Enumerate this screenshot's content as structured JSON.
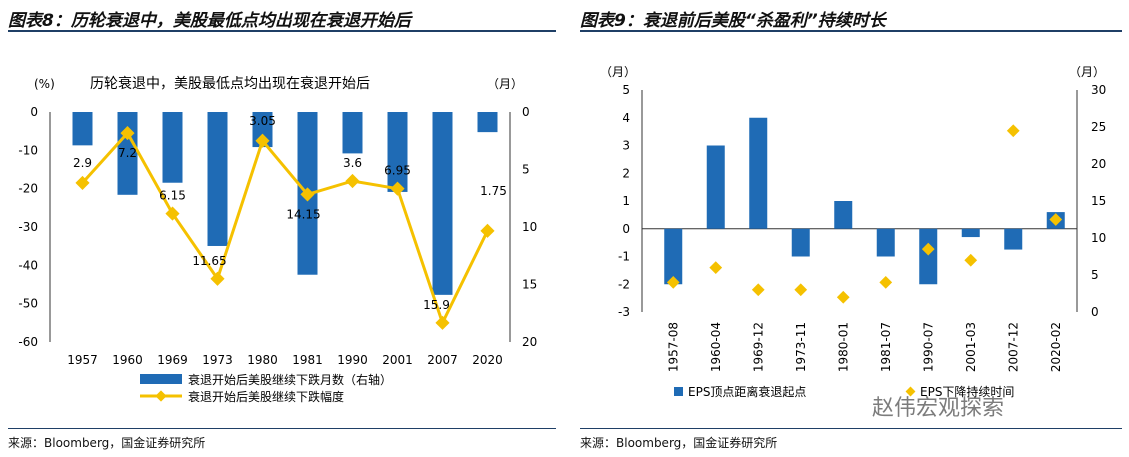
{
  "left": {
    "panel_title": "图表8：历轮衰退中，美股最低点均出现在衰退开始后",
    "source": "来源：Bloomberg，国金证券研究所"
  },
  "right": {
    "panel_title": "图表9：衰退前后美股“杀盈利”持续时长",
    "source": "来源：Bloomberg，国金证券研究所"
  },
  "watermark": "赵伟宏观探索",
  "chart_data": [
    {
      "type": "bar",
      "title": "历轮衰退中，美股最低点均出现在衰退开始后",
      "left_unit": "(%)",
      "right_unit": "（月）",
      "categories": [
        "1957",
        "1960",
        "1969",
        "1973",
        "1980",
        "1981",
        "1990",
        "2001",
        "2007",
        "2020"
      ],
      "ylim": [
        -60,
        0
      ],
      "yticks": [
        0,
        -10,
        -20,
        -30,
        -40,
        -50,
        -60
      ],
      "y2lim": [
        0,
        20
      ],
      "y2ticks": [
        0,
        5,
        10,
        15,
        20
      ],
      "y2_reversed": true,
      "series": [
        {
          "name": "衰退开始后美股继续下跌月数（右轴）",
          "type": "bar",
          "axis": "right",
          "color": "#1f6bb5",
          "values": [
            2.9,
            7.2,
            6.15,
            11.65,
            3.05,
            14.15,
            3.6,
            6.95,
            15.9,
            1.75
          ]
        },
        {
          "name": "衰退开始后美股继续下跌幅度",
          "type": "line",
          "axis": "left",
          "color": "#f5c100",
          "values": [
            -18.5,
            -5.5,
            -26.5,
            -43.5,
            -7.5,
            -21.5,
            -18,
            -20,
            -55,
            -31
          ]
        }
      ],
      "data_labels": [
        "2.9",
        "7.2",
        "6.15",
        "11.65",
        "3.05",
        "14.15",
        "3.6",
        "6.95",
        "15.9",
        "1.75"
      ],
      "legend_position": "bottom"
    },
    {
      "type": "bar",
      "left_unit": "（月）",
      "right_unit": "（月）",
      "categories": [
        "1957-08",
        "1960-04",
        "1969-12",
        "1973-11",
        "1980-01",
        "1981-07",
        "1990-07",
        "2001-03",
        "2007-12",
        "2020-02"
      ],
      "ylim": [
        -3,
        5
      ],
      "yticks": [
        5,
        4,
        3,
        2,
        1,
        0,
        -1,
        -2,
        -3
      ],
      "y2lim": [
        0,
        30
      ],
      "y2ticks": [
        30,
        25,
        20,
        15,
        10,
        5,
        0
      ],
      "series": [
        {
          "name": "EPS顶点距离衰退起点",
          "type": "bar",
          "axis": "left",
          "color": "#1f6bb5",
          "values": [
            -2,
            3,
            4,
            -1,
            1,
            -1,
            -2,
            -0.3,
            -0.75,
            0.6
          ]
        },
        {
          "name": "EPS下降持续时间",
          "type": "scatter",
          "axis": "right",
          "color": "#f5c100",
          "values": [
            4,
            6,
            3,
            3,
            2,
            4,
            8.5,
            7,
            24.5,
            12.5
          ]
        }
      ],
      "legend_position": "bottom"
    }
  ]
}
